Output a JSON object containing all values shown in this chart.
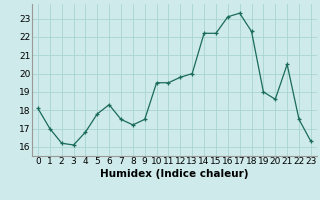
{
  "x": [
    0,
    1,
    2,
    3,
    4,
    5,
    6,
    7,
    8,
    9,
    10,
    11,
    12,
    13,
    14,
    15,
    16,
    17,
    18,
    19,
    20,
    21,
    22,
    23
  ],
  "y": [
    18.1,
    17.0,
    16.2,
    16.1,
    16.8,
    17.8,
    18.3,
    17.5,
    17.2,
    17.5,
    19.5,
    19.5,
    19.8,
    20.0,
    22.2,
    22.2,
    23.1,
    23.3,
    22.3,
    19.0,
    18.6,
    20.5,
    17.5,
    16.3
  ],
  "xlabel": "Humidex (Indice chaleur)",
  "ylim": [
    15.5,
    23.8
  ],
  "xlim": [
    -0.5,
    23.5
  ],
  "yticks": [
    16,
    17,
    18,
    19,
    20,
    21,
    22,
    23
  ],
  "xticks": [
    0,
    1,
    2,
    3,
    4,
    5,
    6,
    7,
    8,
    9,
    10,
    11,
    12,
    13,
    14,
    15,
    16,
    17,
    18,
    19,
    20,
    21,
    22,
    23
  ],
  "line_color": "#1a6b5a",
  "marker": "+",
  "bg_color": "#ceeaea",
  "grid_color": "#a8d4d4",
  "xlabel_fontsize": 7.5,
  "tick_fontsize": 6.5
}
